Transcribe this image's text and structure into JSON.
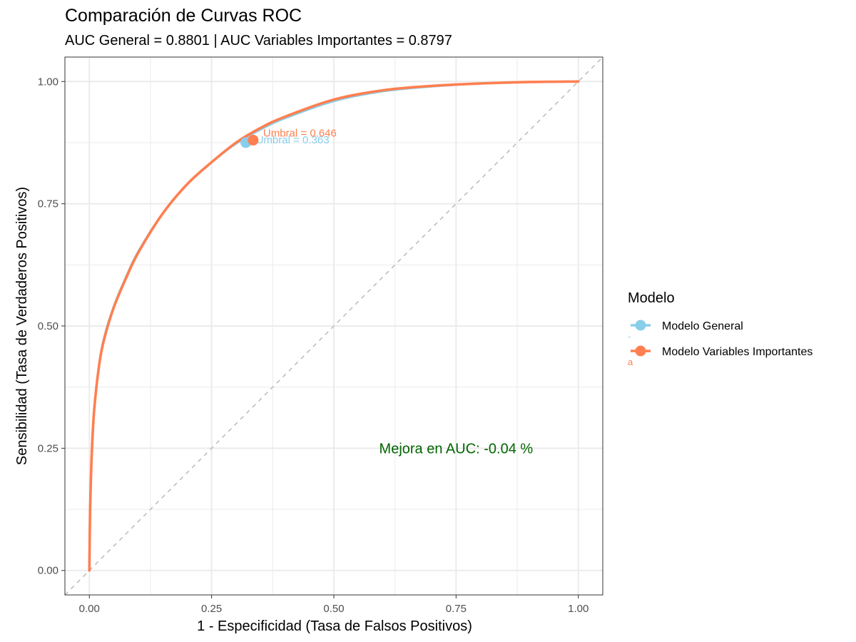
{
  "chart_data": {
    "type": "line",
    "title": "Comparación de Curvas ROC",
    "subtitle": "AUC General = 0.8801 | AUC Variables Importantes = 0.8797",
    "xlabel": "1 - Especificidad (Tasa de Falsos Positivos)",
    "ylabel": "Sensibilidad (Tasa de Verdaderos Positivos)",
    "xlim": [
      -0.05,
      1.05
    ],
    "ylim": [
      -0.05,
      1.05
    ],
    "x_ticks": [
      0.0,
      0.25,
      0.5,
      0.75,
      1.0
    ],
    "x_tick_labels": [
      "0.00",
      "0.25",
      "0.50",
      "0.75",
      "1.00"
    ],
    "y_ticks": [
      0.0,
      0.25,
      0.5,
      0.75,
      1.0
    ],
    "y_tick_labels": [
      "0.00",
      "0.25",
      "0.50",
      "0.75",
      "1.00"
    ],
    "grid": true,
    "legend": {
      "title": "Modelo",
      "placement": "right",
      "glyph_labels": [
        "-",
        "a"
      ]
    },
    "series": [
      {
        "name": "Modelo General",
        "color": "#87CEEB",
        "x": [
          0.0,
          0.0015,
          0.005,
          0.01,
          0.02,
          0.03,
          0.05,
          0.075,
          0.1,
          0.15,
          0.2,
          0.25,
          0.3,
          0.35,
          0.4,
          0.5,
          0.6,
          0.7,
          0.8,
          0.9,
          1.0
        ],
        "y": [
          0.0,
          0.12,
          0.24,
          0.33,
          0.42,
          0.475,
          0.54,
          0.6,
          0.652,
          0.73,
          0.79,
          0.835,
          0.873,
          0.902,
          0.925,
          0.96,
          0.98,
          0.99,
          0.996,
          0.999,
          1.0
        ],
        "threshold_point": {
          "x": 0.32,
          "y": 0.875,
          "label": "Umbral = 0.363"
        }
      },
      {
        "name": "Modelo Variables Importantes",
        "color": "#FF7F50",
        "x": [
          0.0,
          0.0015,
          0.005,
          0.01,
          0.02,
          0.03,
          0.05,
          0.075,
          0.1,
          0.15,
          0.2,
          0.25,
          0.3,
          0.35,
          0.4,
          0.5,
          0.6,
          0.7,
          0.8,
          0.9,
          1.0
        ],
        "y": [
          0.0,
          0.12,
          0.24,
          0.33,
          0.42,
          0.472,
          0.538,
          0.598,
          0.65,
          0.73,
          0.79,
          0.835,
          0.875,
          0.905,
          0.928,
          0.963,
          0.982,
          0.991,
          0.996,
          0.999,
          1.0
        ],
        "threshold_point": {
          "x": 0.335,
          "y": 0.88,
          "label": "Umbral = 0.646"
        }
      }
    ],
    "diagonal": {
      "color": "#BEBEBE"
    },
    "annotation": {
      "text": "Mejora en AUC: -0.04 %",
      "x": 0.75,
      "y": 0.25,
      "color": "#006400"
    }
  }
}
